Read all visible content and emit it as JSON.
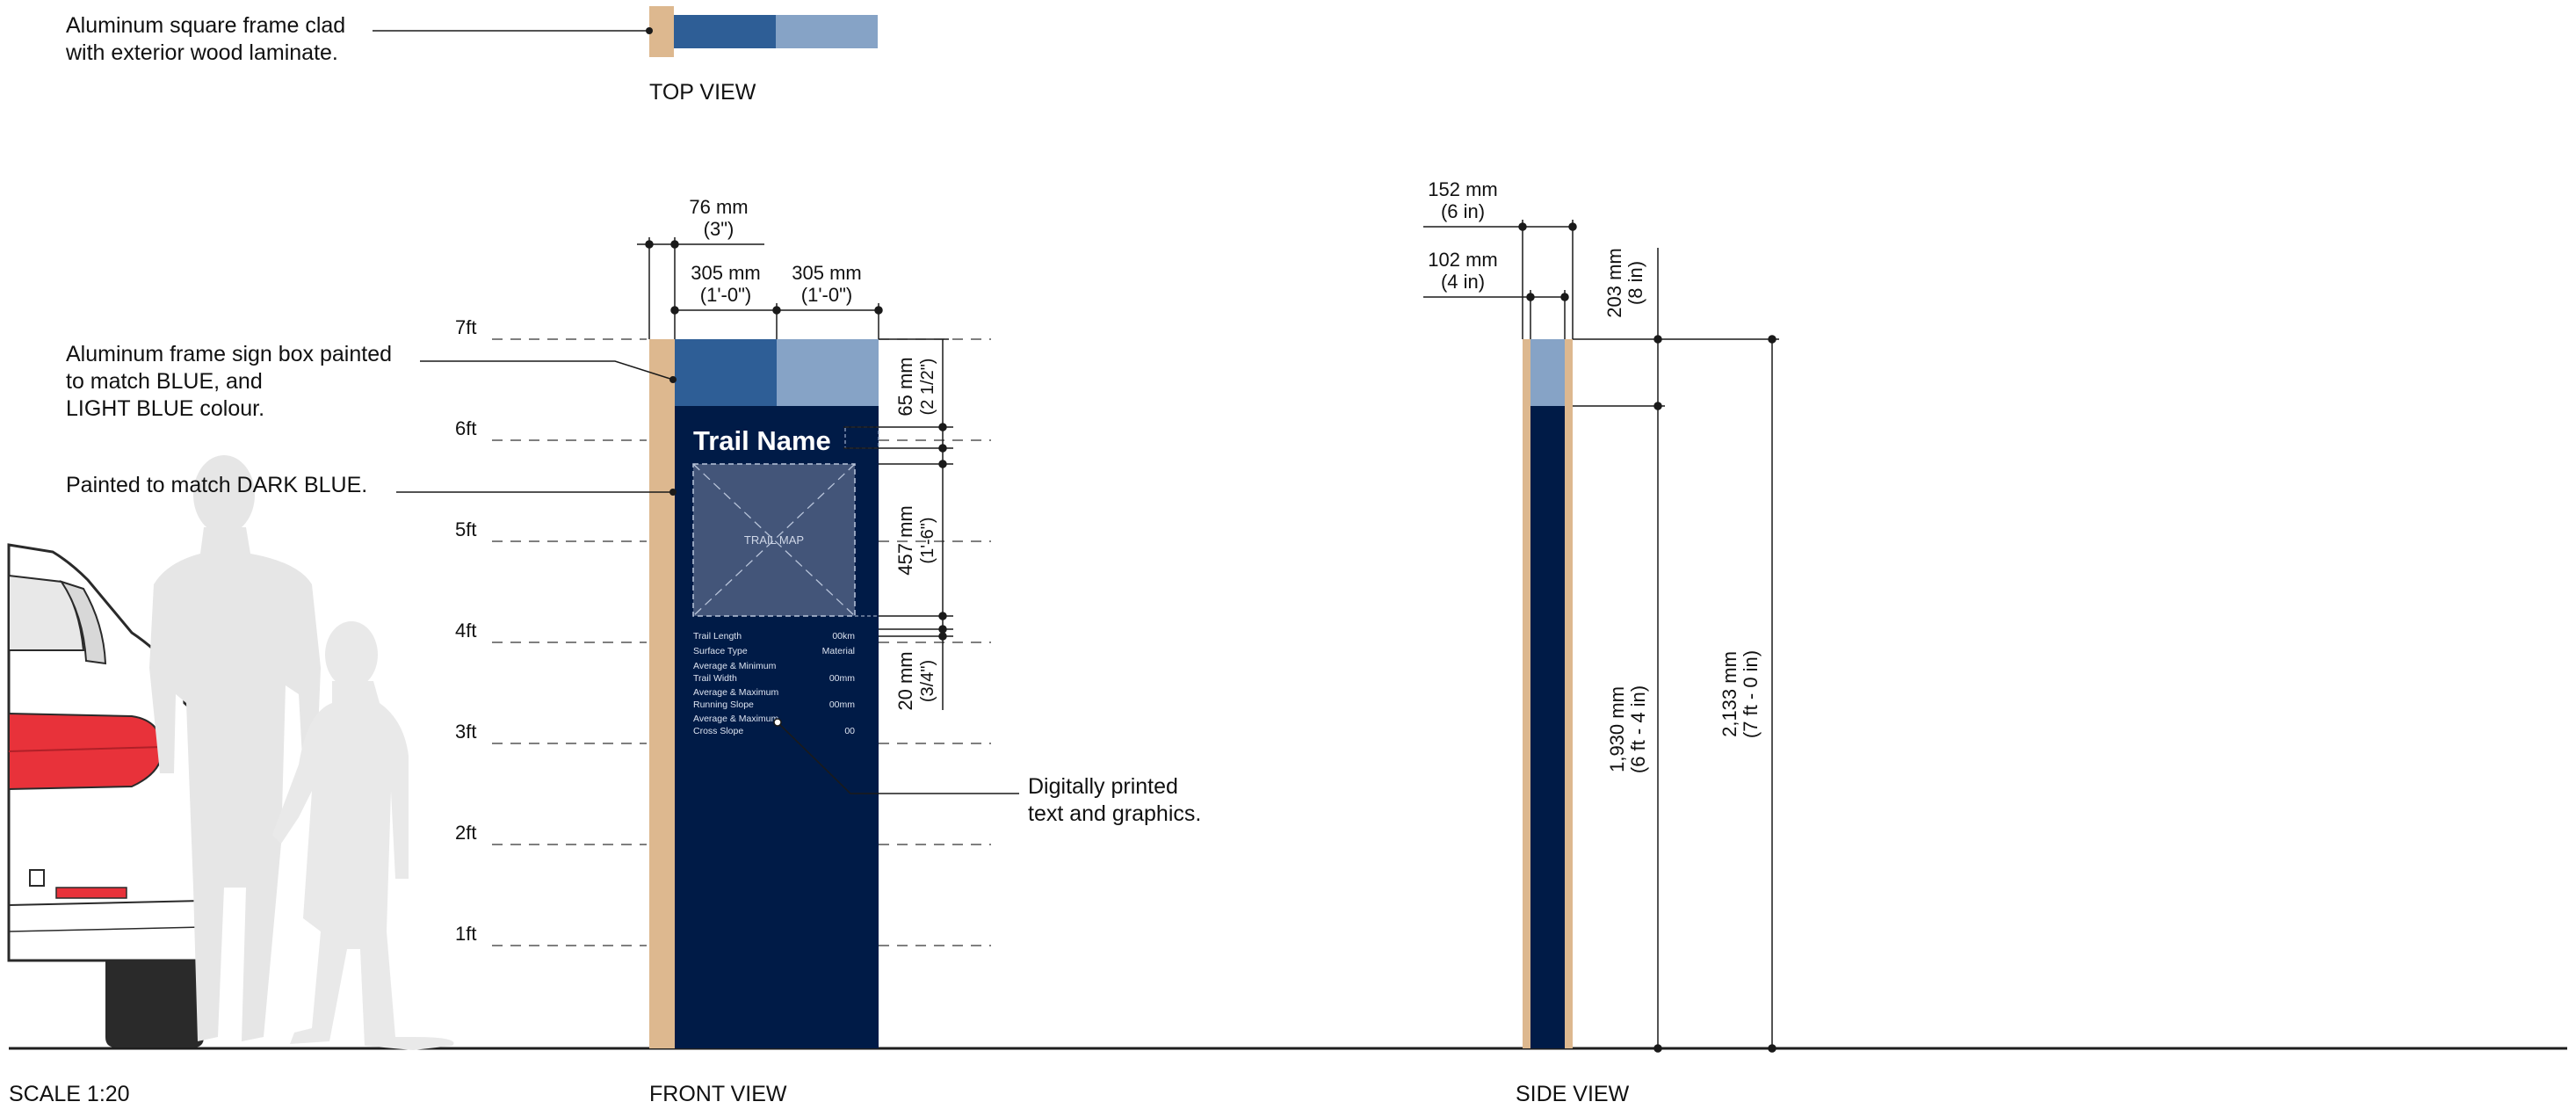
{
  "colors": {
    "wood": "#DDB88F",
    "blue": "#2E5E96",
    "light_blue": "#86A3C6",
    "dark_blue": "#001B47",
    "map_fill": "#435579",
    "ground": "#1E1E1E",
    "silhouette": "#E6E6E6",
    "tail_light": "#E8323A",
    "line": "#1A1A1A",
    "text": "#111111",
    "white": "#FFFFFF"
  },
  "notes": {
    "top_clad_line1": "Aluminum square frame clad",
    "top_clad_line2": "with exterior wood laminate.",
    "signbox_line1": "Aluminum frame sign box painted",
    "signbox_line2": "to match BLUE, and",
    "signbox_line3": "LIGHT BLUE colour.",
    "dark_blue_note": "Painted to match DARK BLUE.",
    "printed_line1": "Digitally printed",
    "printed_line2": "text and graphics."
  },
  "view_labels": {
    "top": "TOP VIEW",
    "front": "FRONT VIEW",
    "side": "SIDE VIEW",
    "scale": "SCALE 1:20"
  },
  "height_marks": [
    "7ft",
    "6ft",
    "5ft",
    "4ft",
    "3ft",
    "2ft",
    "1ft"
  ],
  "dimensions": {
    "post_width": [
      "76 mm",
      "(3\")"
    ],
    "panel_left": [
      "305 mm",
      "(1'-0\")"
    ],
    "panel_right": [
      "305 mm",
      "(1'-0\")"
    ],
    "header_height": [
      "65 mm",
      "(2 1/2\")"
    ],
    "map_height": [
      "457 mm",
      "(1'-6\")"
    ],
    "info_gap": [
      "20 mm",
      "(3/4\")"
    ],
    "side_outer": [
      "152 mm",
      "(6 in)"
    ],
    "side_inner": [
      "102 mm",
      "(4 in)"
    ],
    "side_header": [
      "203 mm",
      "(8 in)"
    ],
    "side_panel_height": [
      "1,930 mm",
      "(6 ft - 4 in)"
    ],
    "side_total_height": [
      "2,133 mm",
      "(7 ft - 0 in)"
    ]
  },
  "sign": {
    "title": "Trail Name",
    "map_label": "TRAIL MAP",
    "info_rows": [
      {
        "label": "Trail Length",
        "value": "00km"
      },
      {
        "label": "Surface Type",
        "value": "Material"
      },
      {
        "label": "Average & Minimum\nTrail Width",
        "value": "00mm"
      },
      {
        "label": "Average & Maximum\nRunning Slope",
        "value": "00mm"
      },
      {
        "label": "Average & Maximum\nCross Slope",
        "value": "00"
      }
    ]
  }
}
